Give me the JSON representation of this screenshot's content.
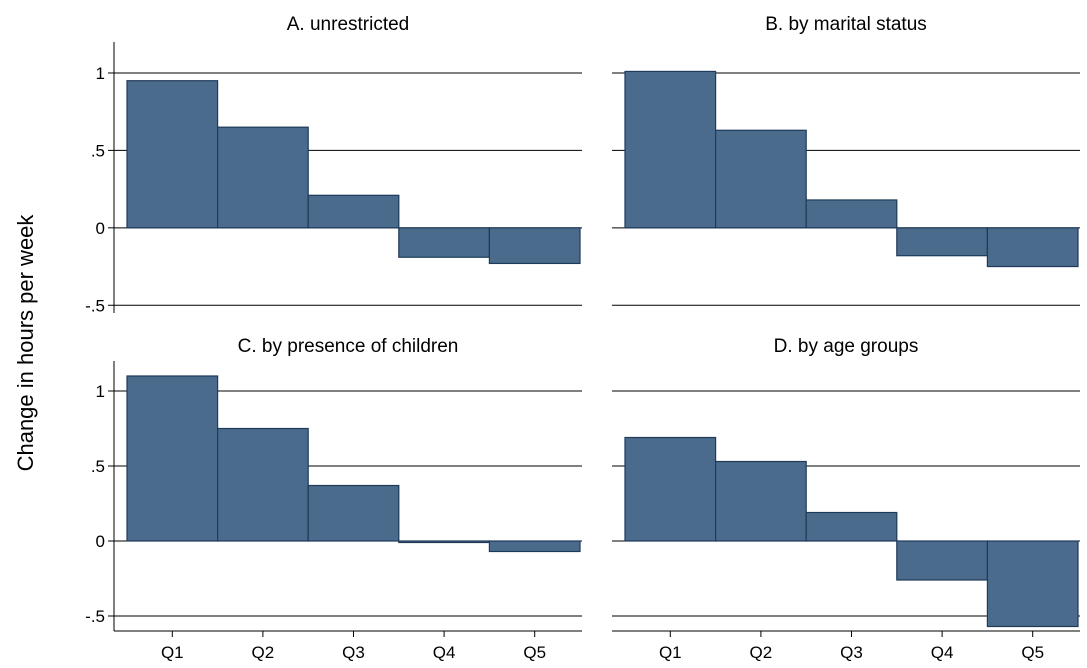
{
  "chart_data": [
    {
      "type": "bar",
      "title": "A. unrestricted",
      "categories": [
        "Q1",
        "Q2",
        "Q3",
        "Q4",
        "Q5"
      ],
      "values": [
        0.95,
        0.65,
        0.21,
        -0.19,
        -0.23
      ],
      "ylim": [
        -0.55,
        1.2
      ],
      "yticks": [
        1,
        0.5,
        0,
        -0.5
      ],
      "ytick_labels": [
        "1",
        ".5",
        "0",
        "-.5"
      ],
      "grid": true,
      "bar_color": "#4a6b8c"
    },
    {
      "type": "bar",
      "title": "B. by marital status",
      "categories": [
        "Q1",
        "Q2",
        "Q3",
        "Q4",
        "Q5"
      ],
      "values": [
        1.01,
        0.63,
        0.18,
        -0.18,
        -0.25
      ],
      "ylim": [
        -0.55,
        1.2
      ],
      "yticks": [
        1,
        0.5,
        0,
        -0.5
      ],
      "grid": true,
      "bar_color": "#4a6b8c"
    },
    {
      "type": "bar",
      "title": "C. by presence of children",
      "categories": [
        "Q1",
        "Q2",
        "Q3",
        "Q4",
        "Q5"
      ],
      "values": [
        1.1,
        0.75,
        0.37,
        -0.01,
        -0.07
      ],
      "ylim": [
        -0.6,
        1.2
      ],
      "yticks": [
        1,
        0.5,
        0,
        -0.5
      ],
      "ytick_labels": [
        "1",
        ".5",
        "0",
        "-.5"
      ],
      "grid": true,
      "bar_color": "#4a6b8c"
    },
    {
      "type": "bar",
      "title": "D. by age groups",
      "categories": [
        "Q1",
        "Q2",
        "Q3",
        "Q4",
        "Q5"
      ],
      "values": [
        0.69,
        0.53,
        0.19,
        -0.26,
        -0.57
      ],
      "ylim": [
        -0.6,
        1.2
      ],
      "yticks": [
        1,
        0.5,
        0,
        -0.5
      ],
      "grid": true,
      "bar_color": "#4a6b8c"
    }
  ],
  "ylabel": "Change in hours per week",
  "colors": {
    "bar_fill": "#4a6b8c",
    "bar_edge": "#1f3a5a",
    "grid": "#000000",
    "axis": "#000000"
  }
}
